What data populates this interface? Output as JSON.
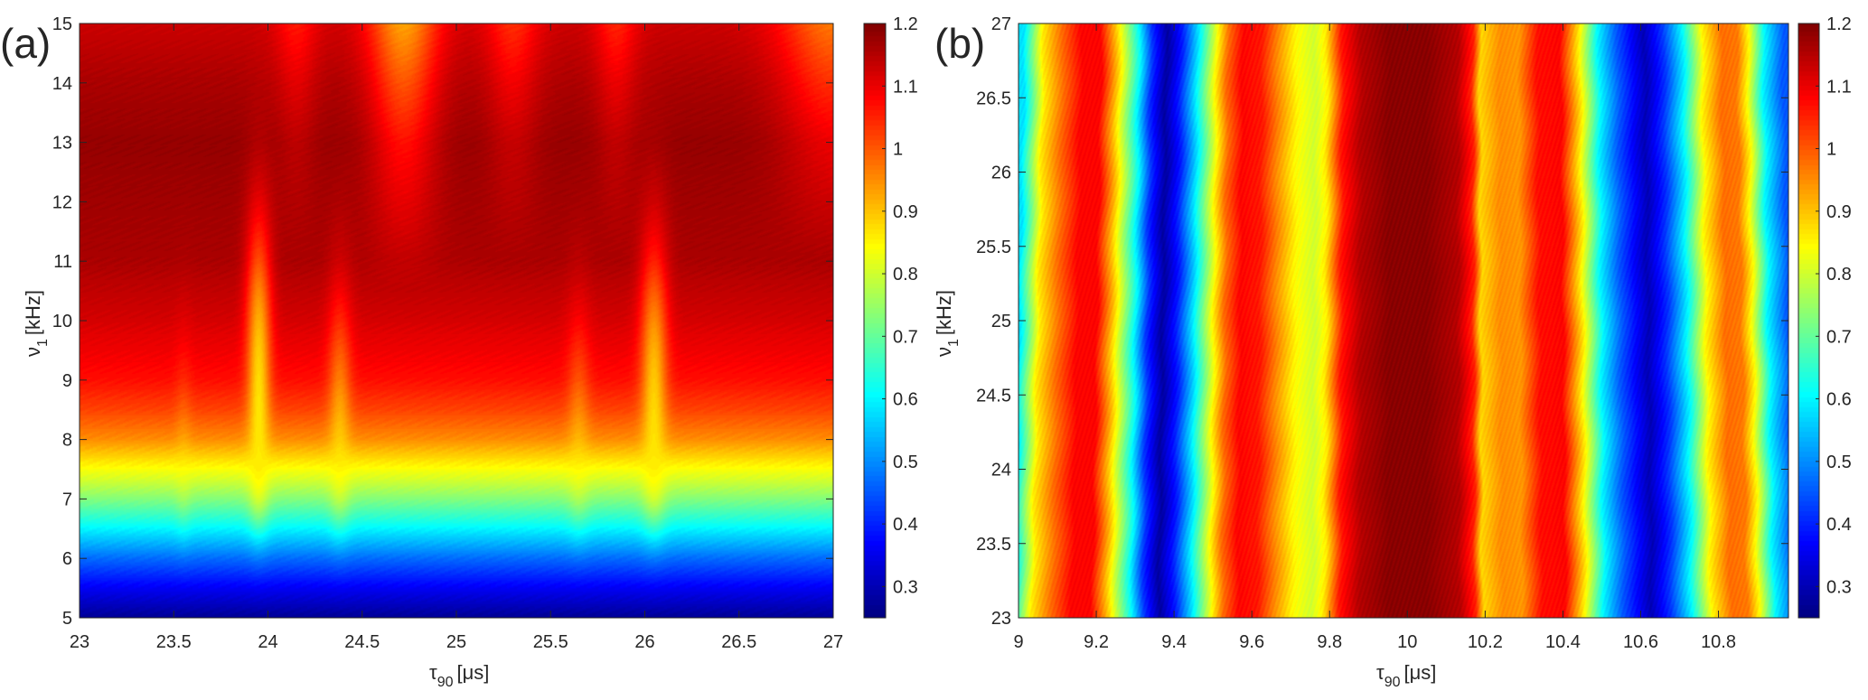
{
  "chart_data": [
    {
      "type": "heatmap",
      "panel_label": "(a)",
      "xlabel": {
        "symbol": "τ",
        "sub": "90",
        "unit": "[μs]"
      },
      "ylabel": {
        "symbol": "ν",
        "sub": "1",
        "unit": "[kHz]"
      },
      "xlim": [
        23,
        27
      ],
      "ylim": [
        5,
        15
      ],
      "xtick_labels": [
        "23",
        "23.5",
        "24",
        "24.5",
        "25",
        "25.5",
        "26",
        "26.5",
        "27"
      ],
      "ytick_labels": [
        "5",
        "6",
        "7",
        "8",
        "9",
        "10",
        "11",
        "12",
        "13",
        "14",
        "15"
      ],
      "colormap": "jet",
      "clim": [
        0.25,
        1.2
      ],
      "colorbar_tick_labels": [
        "0.3",
        "0.4",
        "0.5",
        "0.6",
        "0.7",
        "0.8",
        "0.9",
        "1",
        "1.1",
        "1.2"
      ],
      "nu_profile": [
        [
          5,
          0.27
        ],
        [
          5.5,
          0.36
        ],
        [
          6,
          0.47
        ],
        [
          6.5,
          0.6
        ],
        [
          7,
          0.73
        ],
        [
          7.3,
          0.8
        ],
        [
          7.6,
          0.86
        ],
        [
          8,
          0.95
        ],
        [
          8.5,
          1.02
        ],
        [
          9,
          1.07
        ],
        [
          10,
          1.12
        ],
        [
          11,
          1.16
        ],
        [
          12,
          1.17
        ],
        [
          13,
          1.18
        ],
        [
          14,
          1.16
        ],
        [
          15,
          1.13
        ]
      ],
      "ridges": [
        {
          "tau": 23.55,
          "width": 0.03,
          "strength": 0.45,
          "nu_top": 8.2,
          "level": 0.86
        },
        {
          "tau": 23.95,
          "width": 0.04,
          "strength": 1.0,
          "nu_top": 11.0,
          "level": 0.86
        },
        {
          "tau": 24.38,
          "width": 0.04,
          "strength": 0.75,
          "nu_top": 9.6,
          "level": 0.86
        },
        {
          "tau": 25.65,
          "width": 0.04,
          "strength": 0.55,
          "nu_top": 9.2,
          "level": 0.86
        },
        {
          "tau": 26.05,
          "width": 0.045,
          "strength": 0.95,
          "nu_top": 10.6,
          "level": 0.86
        }
      ],
      "broad_dips": [
        {
          "tau": 24.72,
          "width": 0.13,
          "depth": 0.2,
          "nu_from": 10.5
        },
        {
          "tau": 24.15,
          "width": 0.08,
          "depth": 0.07,
          "nu_from": 11
        },
        {
          "tau": 25.3,
          "width": 0.1,
          "depth": 0.09,
          "nu_from": 11
        },
        {
          "tau": 25.85,
          "width": 0.08,
          "depth": 0.08,
          "nu_from": 11
        },
        {
          "tau": 27.0,
          "width": 0.2,
          "depth": 0.16,
          "nu_from": 11
        }
      ]
    },
    {
      "type": "heatmap",
      "panel_label": "(b)",
      "xlabel": {
        "symbol": "τ",
        "sub": "90",
        "unit": "[μs]"
      },
      "ylabel": {
        "symbol": "ν",
        "sub": "1",
        "unit": "[kHz]"
      },
      "xlim": [
        9,
        10.98
      ],
      "ylim": [
        23,
        27
      ],
      "xtick_labels": [
        "9",
        "9.2",
        "9.4",
        "9.6",
        "9.8",
        "10",
        "10.2",
        "10.4",
        "10.6",
        "10.8"
      ],
      "ytick_labels": [
        "23",
        "23.5",
        "24",
        "24.5",
        "25",
        "25.5",
        "26",
        "26.5",
        "27"
      ],
      "colormap": "jet",
      "clim": [
        0.25,
        1.2
      ],
      "colorbar_tick_labels": [
        "0.3",
        "0.4",
        "0.5",
        "0.6",
        "0.7",
        "0.8",
        "0.9",
        "1",
        "1.1",
        "1.2"
      ],
      "tau_profile": [
        [
          9.0,
          0.58
        ],
        [
          9.03,
          0.75
        ],
        [
          9.05,
          0.86
        ],
        [
          9.1,
          0.98
        ],
        [
          9.15,
          1.08
        ],
        [
          9.2,
          1.08
        ],
        [
          9.24,
          0.9
        ],
        [
          9.26,
          0.8
        ],
        [
          9.3,
          0.6
        ],
        [
          9.33,
          0.42
        ],
        [
          9.37,
          0.28
        ],
        [
          9.41,
          0.4
        ],
        [
          9.45,
          0.58
        ],
        [
          9.5,
          0.84
        ],
        [
          9.53,
          0.98
        ],
        [
          9.57,
          1.08
        ],
        [
          9.62,
          1.06
        ],
        [
          9.66,
          0.96
        ],
        [
          9.71,
          0.85
        ],
        [
          9.76,
          0.8
        ],
        [
          9.79,
          0.86
        ],
        [
          9.83,
          1.06
        ],
        [
          9.88,
          1.15
        ],
        [
          9.95,
          1.19
        ],
        [
          10.05,
          1.19
        ],
        [
          10.13,
          1.15
        ],
        [
          10.17,
          1.05
        ],
        [
          10.19,
          0.88
        ],
        [
          10.24,
          0.95
        ],
        [
          10.29,
          0.94
        ],
        [
          10.34,
          1.07
        ],
        [
          10.4,
          1.08
        ],
        [
          10.45,
          0.86
        ],
        [
          10.5,
          0.6
        ],
        [
          10.55,
          0.45
        ],
        [
          10.62,
          0.3
        ],
        [
          10.67,
          0.42
        ],
        [
          10.72,
          0.6
        ],
        [
          10.77,
          0.85
        ],
        [
          10.82,
          0.98
        ],
        [
          10.86,
          0.97
        ],
        [
          10.89,
          0.84
        ],
        [
          10.93,
          0.6
        ],
        [
          10.98,
          0.45
        ]
      ]
    }
  ]
}
